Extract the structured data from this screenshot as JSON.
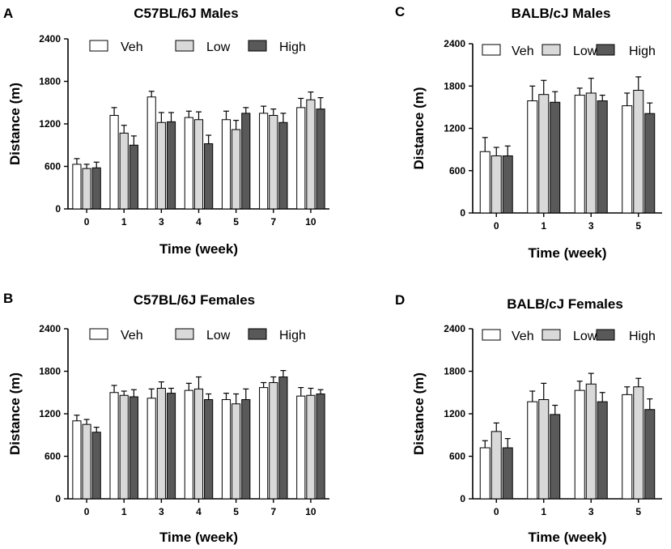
{
  "figure": {
    "panels": [
      {
        "letter": "A"
      },
      {
        "letter": "B"
      },
      {
        "letter": "C"
      },
      {
        "letter": "D"
      }
    ]
  },
  "series_style": {
    "Veh": "#ffffff",
    "Low": "#d9d9d9",
    "High": "#595959"
  },
  "chart_data": [
    {
      "panel": "A",
      "type": "bar",
      "title": "C57BL/6J Males",
      "xlabel": "Time (week)",
      "ylabel": "Distance (m)",
      "ylim": [
        0,
        2400
      ],
      "yticks": [
        0,
        600,
        1200,
        1800,
        2400
      ],
      "categories": [
        "0",
        "1",
        "3",
        "4",
        "5",
        "7",
        "10"
      ],
      "series": [
        {
          "name": "Veh",
          "values": [
            630,
            1320,
            1580,
            1290,
            1260,
            1350,
            1430
          ],
          "errors": [
            80,
            110,
            80,
            90,
            120,
            100,
            130
          ]
        },
        {
          "name": "Low",
          "values": [
            570,
            1070,
            1220,
            1260,
            1120,
            1320,
            1540
          ],
          "errors": [
            60,
            110,
            140,
            110,
            130,
            90,
            110
          ]
        },
        {
          "name": "High",
          "values": [
            580,
            900,
            1230,
            920,
            1350,
            1220,
            1410
          ],
          "errors": [
            80,
            130,
            130,
            120,
            80,
            130,
            160
          ]
        }
      ]
    },
    {
      "panel": "B",
      "type": "bar",
      "title": "C57BL/6J Females",
      "xlabel": "Time (week)",
      "ylabel": "Distance (m)",
      "ylim": [
        0,
        2400
      ],
      "yticks": [
        0,
        600,
        1200,
        1800,
        2400
      ],
      "categories": [
        "0",
        "1",
        "3",
        "4",
        "5",
        "7",
        "10"
      ],
      "series": [
        {
          "name": "Veh",
          "values": [
            1100,
            1500,
            1420,
            1530,
            1400,
            1570,
            1450
          ],
          "errors": [
            80,
            100,
            130,
            100,
            90,
            70,
            120
          ]
        },
        {
          "name": "Low",
          "values": [
            1050,
            1460,
            1560,
            1550,
            1340,
            1640,
            1460
          ],
          "errors": [
            70,
            60,
            90,
            170,
            140,
            80,
            100
          ]
        },
        {
          "name": "High",
          "values": [
            940,
            1440,
            1490,
            1400,
            1400,
            1720,
            1480
          ],
          "errors": [
            70,
            100,
            70,
            80,
            150,
            90,
            60
          ]
        }
      ]
    },
    {
      "panel": "C",
      "type": "bar",
      "title": "BALB/cJ Males",
      "xlabel": "Time (week)",
      "ylabel": "Distance (m)",
      "ylim": [
        0,
        2400
      ],
      "yticks": [
        0,
        600,
        1200,
        1800,
        2400
      ],
      "categories": [
        "0",
        "1",
        "3",
        "5"
      ],
      "series": [
        {
          "name": "Veh",
          "values": [
            870,
            1590,
            1670,
            1520
          ],
          "errors": [
            200,
            210,
            100,
            180
          ]
        },
        {
          "name": "Low",
          "values": [
            810,
            1680,
            1700,
            1740
          ],
          "errors": [
            120,
            200,
            210,
            190
          ]
        },
        {
          "name": "High",
          "values": [
            810,
            1570,
            1590,
            1410
          ],
          "errors": [
            140,
            150,
            80,
            150
          ]
        }
      ]
    },
    {
      "panel": "D",
      "type": "bar",
      "title": "BALB/cJ Females",
      "xlabel": "Time (week)",
      "ylabel": "Distance (m)",
      "ylim": [
        0,
        2400
      ],
      "yticks": [
        0,
        600,
        1200,
        1800,
        2400
      ],
      "categories": [
        "0",
        "1",
        "3",
        "5"
      ],
      "series": [
        {
          "name": "Veh",
          "values": [
            720,
            1370,
            1530,
            1470
          ],
          "errors": [
            100,
            150,
            130,
            110
          ]
        },
        {
          "name": "Low",
          "values": [
            950,
            1400,
            1620,
            1580
          ],
          "errors": [
            120,
            230,
            150,
            120
          ]
        },
        {
          "name": "High",
          "values": [
            720,
            1190,
            1370,
            1260
          ],
          "errors": [
            130,
            130,
            130,
            150
          ]
        }
      ]
    }
  ]
}
